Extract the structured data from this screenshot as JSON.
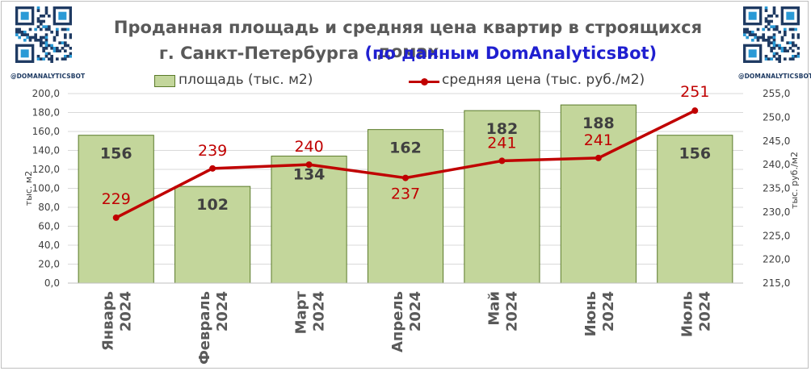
{
  "title": {
    "line1": "Проданная площадь и средняя цена квартир в строящихся домах",
    "line2_prefix": "г. Санкт-Петербурга ",
    "line2_highlight": "(по данным DomAnalyticsBot)"
  },
  "brand": {
    "left_caption": "@DOMANALYTICSBOT",
    "right_caption": "@DOMANALYTICSBOT",
    "qr_icon": "qr-code-icon"
  },
  "colors": {
    "bar_fill": "#c3d69b",
    "bar_stroke": "#5a7a2a",
    "line": "#c00000",
    "bar_label": "#404040",
    "line_label": "#c00000",
    "highlight": "#1f1fd0"
  },
  "chart_data": {
    "type": "bar",
    "categories": [
      [
        "Январь",
        "2024"
      ],
      [
        "Февраль",
        "2024"
      ],
      [
        "Март",
        "2024"
      ],
      [
        "Апрель",
        "2024"
      ],
      [
        "Май",
        "2024"
      ],
      [
        "Июнь",
        "2024"
      ],
      [
        "Июль",
        "2024"
      ]
    ],
    "series": [
      {
        "name": "площадь (тыс. м2)",
        "type": "bar",
        "axis": "left",
        "values": [
          156,
          102,
          134,
          162,
          182,
          188,
          156
        ],
        "labels": [
          "156",
          "102",
          "134",
          "162",
          "182",
          "188",
          "156"
        ]
      },
      {
        "name": "средняя цена (тыс. руб./м2)",
        "type": "line",
        "axis": "right",
        "values": [
          228.8,
          239.2,
          240.0,
          237.2,
          240.8,
          241.4,
          251.4
        ],
        "labels": [
          "229",
          "239",
          "240",
          "237",
          "241",
          "241",
          "251"
        ]
      }
    ],
    "y_left": {
      "label": "тыс. м2",
      "ylim": [
        0,
        200
      ],
      "ticks": [
        "0,0",
        "20,0",
        "40,0",
        "60,0",
        "80,0",
        "100,0",
        "120,0",
        "140,0",
        "160,0",
        "180,0",
        "200,0"
      ]
    },
    "y_right": {
      "label": "тыс. руб./м2",
      "ylim": [
        215,
        255
      ],
      "ticks": [
        "215,0",
        "220,0",
        "225,0",
        "230,0",
        "235,0",
        "240,0",
        "245,0",
        "250,0",
        "255,0"
      ]
    },
    "grid": true,
    "legend": "top"
  }
}
